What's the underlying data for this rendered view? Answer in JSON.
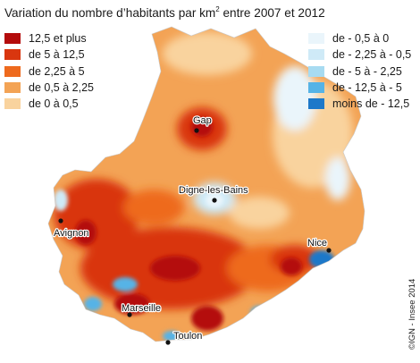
{
  "title": {
    "text": "Variation du nombre d’habitants par km",
    "superscript": "2",
    "suffix": " entre 2007 et 2012"
  },
  "legend": {
    "positive": [
      {
        "label": "12,5 et plus",
        "color": "#b40c0c"
      },
      {
        "label": "de 5 à 12,5",
        "color": "#d9360f"
      },
      {
        "label": "de 2,25 à 5",
        "color": "#ee6a1e"
      },
      {
        "label": "de 0,5 à 2,25",
        "color": "#f3a355"
      },
      {
        "label": "de 0 à 0,5",
        "color": "#f9d39e"
      }
    ],
    "negative": [
      {
        "label": "de - 0,5 à 0",
        "color": "#eaf5fb"
      },
      {
        "label": "de - 2,25 à - 0,5",
        "color": "#cfeaf7"
      },
      {
        "label": "de - 5 à - 2,25",
        "color": "#a7dbf1"
      },
      {
        "label": "de - 12,5 à - 5",
        "color": "#56b3e6"
      },
      {
        "label": "moins de - 12,5",
        "color": "#1d78c9"
      }
    ]
  },
  "cities": [
    {
      "name": "Gap",
      "id": "gap"
    },
    {
      "name": "Digne-les-Bains",
      "id": "digne"
    },
    {
      "name": "Avignon",
      "id": "avignon"
    },
    {
      "name": "Nice",
      "id": "nice"
    },
    {
      "name": "Marseille",
      "id": "marseille"
    },
    {
      "name": "Toulon",
      "id": "toulon"
    }
  ],
  "copyright": "©IGN - Insee 2014"
}
